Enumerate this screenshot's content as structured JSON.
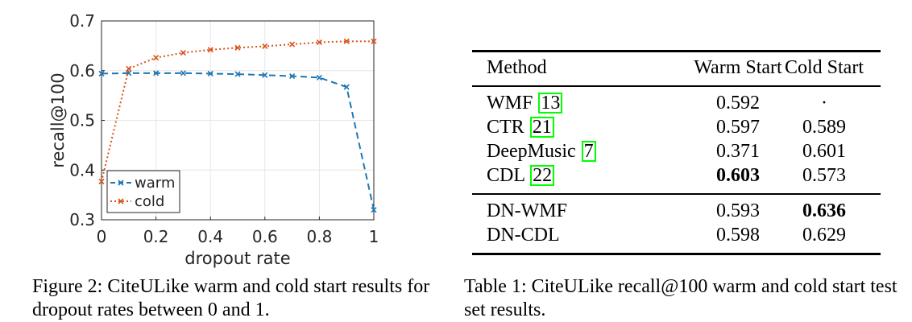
{
  "figure": {
    "caption": "Figure 2: CiteULike warm and cold start results for dropout rates between 0 and 1."
  },
  "chart_data": {
    "type": "line",
    "xlabel": "dropout rate",
    "ylabel": "recall@100",
    "xlim": [
      0,
      1
    ],
    "ylim": [
      0.3,
      0.7
    ],
    "xticks": [
      0,
      0.2,
      0.4,
      0.6,
      0.8,
      1
    ],
    "xtick_labels": [
      "0",
      "0.2",
      "0.4",
      "0.6",
      "0.8",
      "1"
    ],
    "yticks": [
      0.3,
      0.4,
      0.5,
      0.6,
      0.7
    ],
    "ytick_labels": [
      "0.3",
      "0.4",
      "0.5",
      "0.6",
      "0.7"
    ],
    "grid": true,
    "legend_position": "bottom-left",
    "x": [
      0,
      0.1,
      0.2,
      0.3,
      0.4,
      0.5,
      0.6,
      0.7,
      0.8,
      0.9,
      1.0
    ],
    "series": [
      {
        "name": "warm",
        "color": "#1f77b4",
        "style": "dashed",
        "values": [
          0.594,
          0.595,
          0.595,
          0.595,
          0.594,
          0.593,
          0.591,
          0.589,
          0.586,
          0.567,
          0.32
        ]
      },
      {
        "name": "cold",
        "color": "#d95319",
        "style": "dotted",
        "values": [
          0.377,
          0.604,
          0.626,
          0.636,
          0.642,
          0.646,
          0.649,
          0.653,
          0.657,
          0.659,
          0.659
        ]
      }
    ]
  },
  "table": {
    "caption": "Table 1: CiteULike recall@100 warm and cold start test set results.",
    "headers": {
      "method": "Method",
      "warm": "Warm Start",
      "cold": "Cold Start"
    },
    "rows": [
      {
        "name": "WMF",
        "cite": "13",
        "warm": "0.592",
        "cold": "·"
      },
      {
        "name": "CTR",
        "cite": "21",
        "warm": "0.597",
        "cold": "0.589"
      },
      {
        "name": "DeepMusic",
        "cite": "7",
        "warm": "0.371",
        "cold": "0.601"
      },
      {
        "name": "CDL",
        "cite": "22",
        "warm": "0.603",
        "cold": "0.573"
      },
      {
        "name": "DN-WMF",
        "cite": "",
        "warm": "0.593",
        "cold": "0.636"
      },
      {
        "name": "DN-CDL",
        "cite": "",
        "warm": "0.598",
        "cold": "0.629"
      }
    ]
  }
}
